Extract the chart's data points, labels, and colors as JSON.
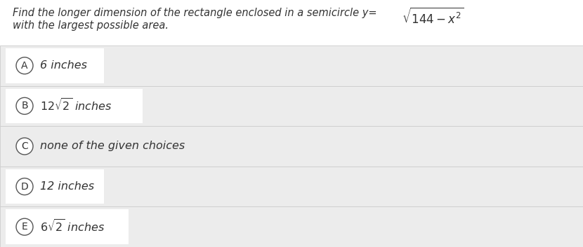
{
  "question_prefix": "Find the longer dimension of the rectangle enclosed in a semicircle y=",
  "question_line2": "with the largest possible area.",
  "choices": [
    {
      "label": "A",
      "text": "6 inches",
      "has_sqrt": false,
      "sqrt_prefix": "",
      "sqrt_suffix": ""
    },
    {
      "label": "B",
      "text": " inches",
      "has_sqrt": true,
      "sqrt_prefix": "12",
      "sqrt_val": "2"
    },
    {
      "label": "C",
      "text": "none of the given choices",
      "has_sqrt": false,
      "sqrt_prefix": "",
      "sqrt_suffix": ""
    },
    {
      "label": "D",
      "text": "12 inches",
      "has_sqrt": false,
      "sqrt_prefix": "",
      "sqrt_suffix": ""
    },
    {
      "label": "E",
      "text": " inches",
      "has_sqrt": true,
      "sqrt_prefix": "6",
      "sqrt_val": "2"
    }
  ],
  "page_bg": "#f0f0f0",
  "white_bg": "#ffffff",
  "row_bg": "#ececec",
  "divider_color": "#cccccc",
  "circle_edge": "#555555",
  "text_color": "#333333",
  "q_fontsize": 10.5,
  "choice_fontsize": 11.5,
  "label_fontsize": 10
}
